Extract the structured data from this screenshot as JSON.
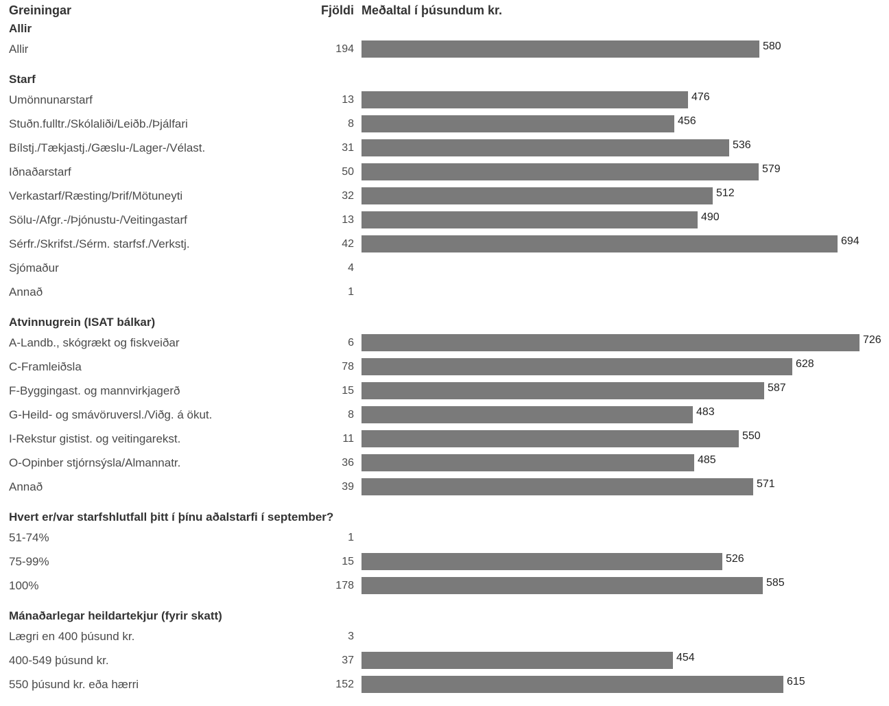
{
  "header": {
    "greiningar": "Greiningar",
    "fjoldi": "Fjöldi",
    "medaltal": "Meðaltal í þúsundum kr."
  },
  "colors": {
    "bar": "#7a7a7a",
    "text": "#4a4a4a"
  },
  "chart_data": {
    "type": "bar",
    "orientation": "horizontal",
    "title": "",
    "xlabel": "Meðaltal í þúsundum kr.",
    "xlim": [
      0,
      730
    ],
    "grid": false,
    "groups": [
      {
        "title": "Allir",
        "rows": [
          {
            "label": "Allir",
            "count": "194",
            "value": 580
          }
        ]
      },
      {
        "title": "Starf",
        "rows": [
          {
            "label": "Umönnunarstarf",
            "count": "13",
            "value": 476
          },
          {
            "label": "Stuðn.fulltr./Skólaliði/Leiðb./Þjálfari",
            "count": "8",
            "value": 456
          },
          {
            "label": "Bílstj./Tækjastj./Gæslu-/Lager-/Vélast.",
            "count": "31",
            "value": 536
          },
          {
            "label": "Iðnaðarstarf",
            "count": "50",
            "value": 579
          },
          {
            "label": "Verkastarf/Ræsting/Þrif/Mötuneyti",
            "count": "32",
            "value": 512
          },
          {
            "label": "Sölu-/Afgr.-/Þjónustu-/Veitingastarf",
            "count": "13",
            "value": 490
          },
          {
            "label": "Sérfr./Skrifst./Sérm. starfsf./Verkstj.",
            "count": "42",
            "value": 694
          },
          {
            "label": "Sjómaður",
            "count": "4",
            "value": null
          },
          {
            "label": "Annað",
            "count": "1",
            "value": null
          }
        ]
      },
      {
        "title": "Atvinnugrein (ISAT bálkar)",
        "rows": [
          {
            "label": "A-Landb., skógrækt og fiskveiðar",
            "count": "6",
            "value": 726
          },
          {
            "label": "C-Framleiðsla",
            "count": "78",
            "value": 628
          },
          {
            "label": "F-Byggingast. og mannvirkjagerð",
            "count": "15",
            "value": 587
          },
          {
            "label": "G-Heild- og smávöruversl./Viðg. á ökut.",
            "count": "8",
            "value": 483
          },
          {
            "label": "I-Rekstur gistist. og veitingarekst.",
            "count": "11",
            "value": 550
          },
          {
            "label": "O-Opinber stjórnsýsla/Almannatr.",
            "count": "36",
            "value": 485
          },
          {
            "label": "Annað",
            "count": "39",
            "value": 571
          }
        ]
      },
      {
        "title": "Hvert er/var starfshlutfall þitt í þínu aðalstarfi í september?",
        "rows": [
          {
            "label": "51-74%",
            "count": "1",
            "value": null
          },
          {
            "label": "75-99%",
            "count": "15",
            "value": 526
          },
          {
            "label": "100%",
            "count": "178",
            "value": 585
          }
        ]
      },
      {
        "title": "Mánaðarlegar heildartekjur (fyrir skatt)",
        "rows": [
          {
            "label": "Lægri en 400 þúsund kr.",
            "count": "3",
            "value": null
          },
          {
            "label": "400-549 þúsund kr.",
            "count": "37",
            "value": 454
          },
          {
            "label": "550 þúsund kr. eða hærri",
            "count": "152",
            "value": 615
          }
        ]
      }
    ]
  }
}
